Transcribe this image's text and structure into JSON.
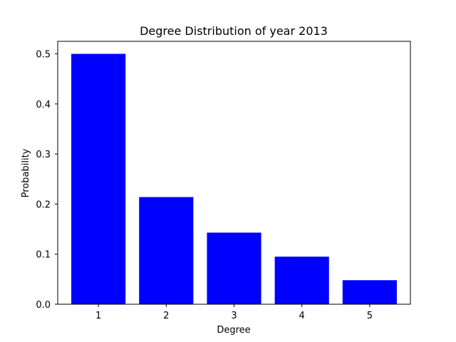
{
  "chart_data": {
    "type": "bar",
    "title": "Degree Distribution of year 2013",
    "xlabel": "Degree",
    "ylabel": "Probability",
    "categories": [
      "1",
      "2",
      "3",
      "4",
      "5"
    ],
    "values": [
      0.5,
      0.214,
      0.143,
      0.095,
      0.048
    ],
    "ylim": [
      0,
      0.525
    ],
    "yticks": [
      "0.0",
      "0.1",
      "0.2",
      "0.3",
      "0.4",
      "0.5"
    ],
    "bar_color": "#0000ff",
    "grid": false,
    "legend": "none"
  }
}
